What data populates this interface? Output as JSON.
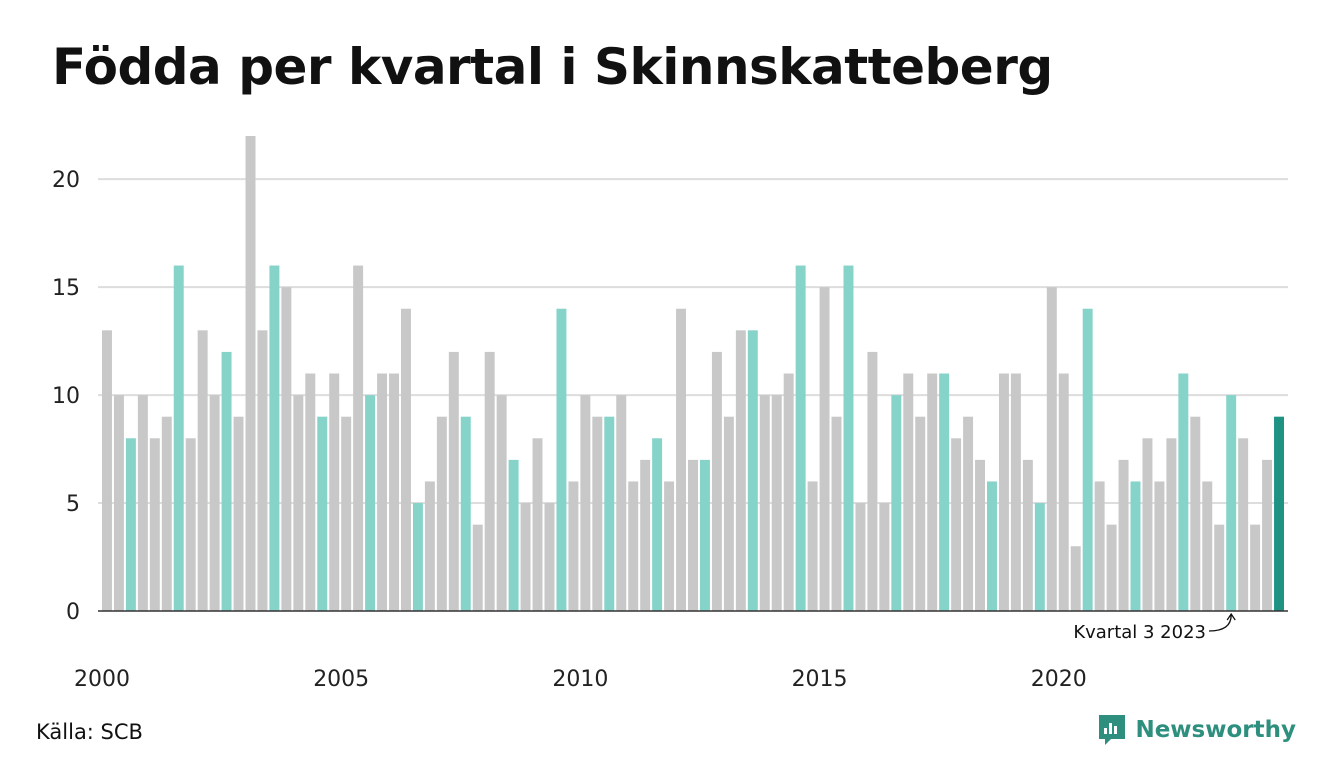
{
  "title": "Födda per kvartal i Skinnskatteberg",
  "source": "Källa: SCB",
  "brand": "Newsworthy",
  "colors": {
    "bar_default": "#c8c8c8",
    "bar_q3": "#86d3c9",
    "bar_highlight": "#1e9384",
    "grid": "#dddddd",
    "axis": "#333333",
    "brand": "#2f8f7f"
  },
  "chart_data": {
    "type": "bar",
    "title": "Födda per kvartal i Skinnskatteberg",
    "xlabel": "",
    "ylabel": "",
    "ylim": [
      0,
      22
    ],
    "yticks": [
      0,
      5,
      10,
      15,
      20
    ],
    "xtick_labels": [
      "2000",
      "2005",
      "2010",
      "2015",
      "2020"
    ],
    "grid": true,
    "start_year": 2000,
    "values": [
      13,
      10,
      8,
      10,
      8,
      9,
      16,
      8,
      13,
      10,
      12,
      9,
      22,
      13,
      16,
      15,
      10,
      11,
      9,
      11,
      9,
      16,
      10,
      11,
      11,
      14,
      5,
      6,
      9,
      12,
      9,
      4,
      12,
      10,
      7,
      5,
      8,
      5,
      14,
      6,
      10,
      9,
      9,
      10,
      6,
      7,
      8,
      6,
      14,
      7,
      7,
      12,
      9,
      13,
      13,
      10,
      10,
      11,
      16,
      6,
      15,
      9,
      16,
      5,
      12,
      5,
      10,
      11,
      9,
      11,
      11,
      8,
      9,
      7,
      6,
      11,
      11,
      7,
      5,
      15,
      11,
      3,
      14,
      6,
      4,
      7,
      6,
      8,
      6,
      8,
      11,
      9,
      6,
      4,
      10,
      8,
      4,
      7,
      9
    ],
    "annotation": "Kvartal 3 2023"
  }
}
